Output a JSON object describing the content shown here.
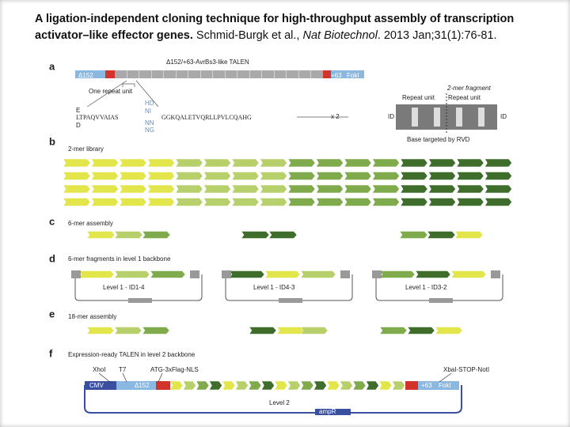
{
  "header": {
    "title": "A ligation-independent cloning technique for high-throughput assembly of transcription activator–like effector genes.",
    "authors": "Schmid-Burgk et al.,",
    "journal": "Nat Biotechnol",
    "citation": ". 2013 Jan;31(1):76-81."
  },
  "figure": {
    "a": {
      "label": "a",
      "title": "Δ152/+63-AvrBs3-like TALEN",
      "left": "Δ152",
      "right": "+63",
      "nuclease": "FokI",
      "repeat": "One repeat unit",
      "seq_start": "LTPAQVVAIAS",
      "seq_end": "GGKQALETVQRLLPVLCQAHG",
      "rvds": [
        "HD",
        "NI",
        "NN",
        "NG"
      ],
      "res1": "E",
      "res2": "D",
      "times": "x 2",
      "fragment": "2-mer fragment",
      "unit1": "Repeat unit",
      "unit2": "Repeat unit",
      "id_left": "ID",
      "id_right": "ID",
      "base": "Base targeted by RVD"
    },
    "b": {
      "label": "b",
      "title": "2-mer library"
    },
    "c": {
      "label": "c",
      "title": "6-mer assembly"
    },
    "d": {
      "label": "d",
      "title": "6-mer fragments in level 1 backbone",
      "plasmids": [
        "Level 1 - ID1-4",
        "Level 1 - ID4-3",
        "Level 1 - ID3-2"
      ]
    },
    "e": {
      "label": "e",
      "title": "18-mer assembly"
    },
    "f": {
      "label": "f",
      "title": "Expression-ready TALEN in level 2 backbone",
      "xhoi": "XhoI",
      "t7": "T7",
      "atg": "ATG-3xFlag-NLS",
      "xbai": "XbaI-STOP-NotI",
      "cmv": "CMV",
      "left": "Δ152",
      "right": "+63",
      "nuclease": "FokI",
      "level": "Level 2",
      "amp": "ampR"
    }
  }
}
